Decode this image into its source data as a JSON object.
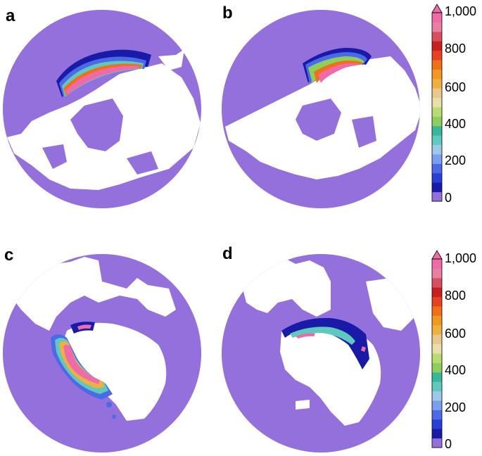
{
  "panels": [
    {
      "letter": "a",
      "hemisphere": "north"
    },
    {
      "letter": "b",
      "hemisphere": "north"
    },
    {
      "letter": "c",
      "hemisphere": "south"
    },
    {
      "letter": "d",
      "hemisphere": "south"
    }
  ],
  "colorbars": [
    {
      "tick_labels": [
        "1,000",
        "800",
        "600",
        "400",
        "200",
        "0"
      ]
    },
    {
      "tick_labels": [
        "1,000",
        "800",
        "600",
        "400",
        "200",
        "0"
      ]
    }
  ],
  "colors": {
    "background_ocean": "#9370DB",
    "land_mask": "#ffffff",
    "scale": [
      "#9370DB",
      "#1a1aa8",
      "#2a3fd8",
      "#4a6ae8",
      "#7b9ff0",
      "#9ec8e8",
      "#5fc9c0",
      "#38b89a",
      "#8ccf5a",
      "#b8dc72",
      "#e8e0a8",
      "#e8c88c",
      "#f0b040",
      "#f09820",
      "#f07018",
      "#e84020",
      "#c82020",
      "#d85060",
      "#e880a0",
      "#f06aa8"
    ]
  }
}
